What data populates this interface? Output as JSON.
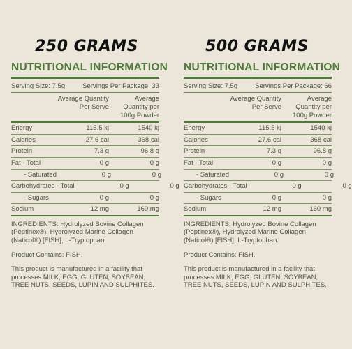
{
  "headings": {
    "left": "250 GRAMS",
    "right": "500 GRAMS"
  },
  "panels": {
    "left": {
      "title": "NUTRITIONAL INFORMATION",
      "serving_size": "Serving Size: 7.5g",
      "servings_per_package": "Servings Per Package: 33",
      "col1": "Average Quantity Per Serve",
      "col2": "Average Quantity per 100g Powder",
      "rows": [
        {
          "label": "Energy",
          "per_serve": "115.5 kj",
          "per_100g": "1540 kj"
        },
        {
          "label": "Calories",
          "per_serve": "27.6 cal",
          "per_100g": "368 cal"
        },
        {
          "label": "Protein",
          "per_serve": "7.3 g",
          "per_100g": "96.8 g"
        },
        {
          "label": "Fat - Total",
          "per_serve": "0 g",
          "per_100g": "0 g"
        },
        {
          "label": "- Saturated",
          "per_serve": "0 g",
          "per_100g": "0 g"
        },
        {
          "label": "Carbohydrates - Total",
          "per_serve": "0 g",
          "per_100g": "0 g"
        },
        {
          "label": "- Sugars",
          "per_serve": "0 g",
          "per_100g": "0 g"
        },
        {
          "label": "Sodium",
          "per_serve": "12 mg",
          "per_100g": "160 mg"
        }
      ],
      "ingredients": "INGREDIENTS: Hydrolyzed Bovine Collagen (Peptinex®), Hydrolyzed Marine Collagen (Naticol®) [FISH], L-Tryptophan.",
      "contains": "Product Contains: FISH.",
      "allergen": "This product is manufactured in a facility that processes MILK, EGG, GLUTEN, SOYBEAN, TREE NUTS, SEEDS, LUPIN AND SULPHITES."
    },
    "right": {
      "title": "NUTRITIONAL INFORMATION",
      "serving_size": "Serving Size: 7.5g",
      "servings_per_package": "Servings Per Package: 66",
      "col1": "Average Quantity Per Serve",
      "col2": "Average Quantity per 100g Powder",
      "rows": [
        {
          "label": "Energy",
          "per_serve": "115.5 kj",
          "per_100g": "1540 kj"
        },
        {
          "label": "Calories",
          "per_serve": "27.6 cal",
          "per_100g": "368 cal"
        },
        {
          "label": "Protein",
          "per_serve": "7.3 g",
          "per_100g": "96.8 g"
        },
        {
          "label": "Fat - Total",
          "per_serve": "0 g",
          "per_100g": "0 g"
        },
        {
          "label": "- Saturated",
          "per_serve": "0 g",
          "per_100g": "0 g"
        },
        {
          "label": "Carbohydrates - Total",
          "per_serve": "0 g",
          "per_100g": "0 g"
        },
        {
          "label": "- Sugars",
          "per_serve": "0 g",
          "per_100g": "0 g"
        },
        {
          "label": "Sodium",
          "per_serve": "12 mg",
          "per_100g": "160 mg"
        }
      ],
      "ingredients": "INGREDIENTS: Hydrolyzed Bovine Collagen (Peptinex®), Hydrolyzed Marine Collagen (Naticol®) [FISH], L-Tryptophan.",
      "contains": "Product Contains: FISH.",
      "allergen": "This product is manufactured in a facility that processes MILK, EGG, GLUTEN, SOYBEAN, TREE NUTS, SEEDS, LUPIN AND SULPHITES."
    }
  },
  "colors": {
    "background": "#ece5da",
    "accent_green": "#4e7a3a",
    "text": "#4e5440"
  }
}
